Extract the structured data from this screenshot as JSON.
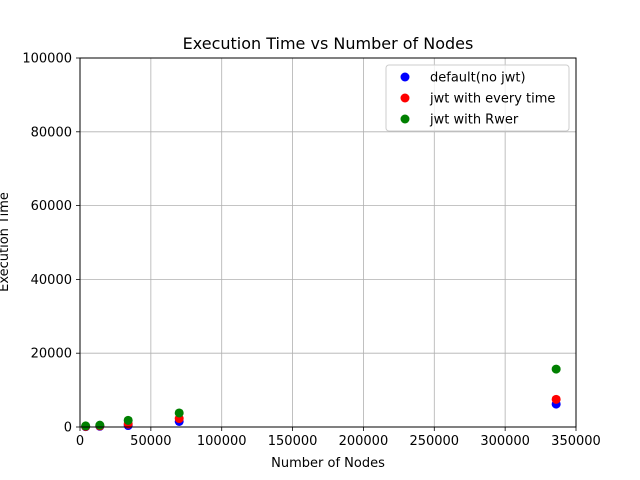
{
  "chart_data": {
    "type": "scatter",
    "title": "Execution Time vs Number of Nodes",
    "xlabel": "Number of Nodes",
    "ylabel": "Execution Time",
    "xlim": [
      0,
      350000
    ],
    "ylim": [
      0,
      100000
    ],
    "xticks": [
      0,
      50000,
      100000,
      150000,
      200000,
      250000,
      300000,
      350000
    ],
    "yticks": [
      0,
      20000,
      40000,
      60000,
      80000,
      100000
    ],
    "grid": true,
    "legend_position": "top-right",
    "series": [
      {
        "name": "default(no jwt)",
        "color": "#0000ff",
        "x": [
          4000,
          14000,
          34000,
          70000,
          336000
        ],
        "y": [
          100,
          200,
          400,
          1500,
          6200
        ]
      },
      {
        "name": "jwt with every time",
        "color": "#ff0000",
        "x": [
          4000,
          14000,
          34000,
          70000,
          336000
        ],
        "y": [
          150,
          300,
          800,
          2300,
          7500
        ]
      },
      {
        "name": "jwt with Rwer",
        "color": "#008000",
        "x": [
          4000,
          14000,
          34000,
          70000,
          336000
        ],
        "y": [
          300,
          500,
          1800,
          3800,
          15700
        ]
      }
    ]
  }
}
